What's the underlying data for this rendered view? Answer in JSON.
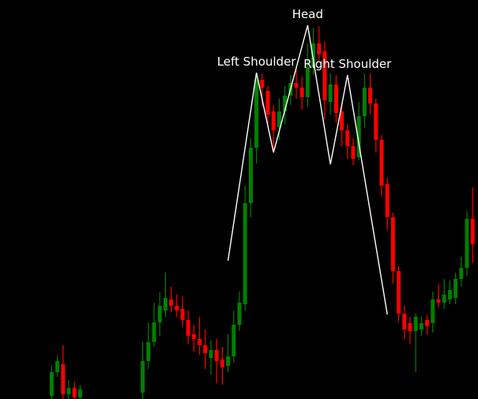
{
  "chart_data": {
    "type": "candlestick",
    "title": "",
    "xlabel": "",
    "ylabel": "",
    "ylim": [
      0,
      505
    ],
    "grid": false,
    "background": "#000000",
    "colors": {
      "up": "#008000",
      "down": "#ff0000",
      "pattern_line": "#ffffff",
      "label": "#ffffff"
    },
    "candles": [
      {
        "i": 1,
        "open": 4,
        "close": 34,
        "high": 42,
        "low": 0
      },
      {
        "i": 2,
        "open": 34,
        "close": 48,
        "high": 55,
        "low": 28
      },
      {
        "i": 3,
        "open": 44,
        "close": 6,
        "high": 68,
        "low": 0
      },
      {
        "i": 4,
        "open": 6,
        "close": 14,
        "high": 24,
        "low": 0
      },
      {
        "i": 5,
        "open": 14,
        "close": 2,
        "high": 22,
        "low": 0
      },
      {
        "i": 6,
        "open": 2,
        "close": 12,
        "high": 18,
        "low": 0
      },
      {
        "i": 17,
        "open": 8,
        "close": 48,
        "high": 72,
        "low": 0
      },
      {
        "i": 18,
        "open": 48,
        "close": 72,
        "high": 97,
        "low": 38
      },
      {
        "i": 19,
        "open": 72,
        "close": 97,
        "high": 122,
        "low": 66
      },
      {
        "i": 20,
        "open": 97,
        "close": 118,
        "high": 135,
        "low": 80
      },
      {
        "i": 21,
        "open": 112,
        "close": 128,
        "high": 160,
        "low": 104
      },
      {
        "i": 22,
        "open": 126,
        "close": 118,
        "high": 142,
        "low": 110
      },
      {
        "i": 23,
        "open": 118,
        "close": 112,
        "high": 132,
        "low": 104
      },
      {
        "i": 24,
        "open": 114,
        "close": 100,
        "high": 130,
        "low": 92
      },
      {
        "i": 25,
        "open": 100,
        "close": 80,
        "high": 112,
        "low": 70
      },
      {
        "i": 26,
        "open": 82,
        "close": 76,
        "high": 94,
        "low": 60
      },
      {
        "i": 27,
        "open": 76,
        "close": 68,
        "high": 104,
        "low": 56
      },
      {
        "i": 28,
        "open": 68,
        "close": 58,
        "high": 88,
        "low": 38
      },
      {
        "i": 29,
        "open": 52,
        "close": 62,
        "high": 74,
        "low": 30
      },
      {
        "i": 30,
        "open": 62,
        "close": 48,
        "high": 76,
        "low": 20
      },
      {
        "i": 31,
        "open": 50,
        "close": 40,
        "high": 66,
        "low": 18
      },
      {
        "i": 32,
        "open": 42,
        "close": 54,
        "high": 82,
        "low": 34
      },
      {
        "i": 33,
        "open": 54,
        "close": 94,
        "high": 112,
        "low": 46
      },
      {
        "i": 34,
        "open": 94,
        "close": 122,
        "high": 136,
        "low": 86
      },
      {
        "i": 35,
        "open": 120,
        "close": 248,
        "high": 270,
        "low": 112
      },
      {
        "i": 36,
        "open": 248,
        "close": 318,
        "high": 330,
        "low": 230
      },
      {
        "i": 37,
        "open": 318,
        "close": 404,
        "high": 412,
        "low": 298
      },
      {
        "i": 38,
        "open": 404,
        "close": 394,
        "high": 412,
        "low": 370
      },
      {
        "i": 39,
        "open": 390,
        "close": 360,
        "high": 396,
        "low": 348
      },
      {
        "i": 40,
        "open": 364,
        "close": 340,
        "high": 372,
        "low": 312
      },
      {
        "i": 41,
        "open": 344,
        "close": 364,
        "high": 380,
        "low": 328
      },
      {
        "i": 42,
        "open": 364,
        "close": 384,
        "high": 396,
        "low": 348
      },
      {
        "i": 43,
        "open": 384,
        "close": 400,
        "high": 410,
        "low": 372
      },
      {
        "i": 44,
        "open": 400,
        "close": 394,
        "high": 418,
        "low": 380
      },
      {
        "i": 45,
        "open": 394,
        "close": 382,
        "high": 408,
        "low": 366
      },
      {
        "i": 46,
        "open": 382,
        "close": 420,
        "high": 450,
        "low": 370
      },
      {
        "i": 47,
        "open": 420,
        "close": 450,
        "high": 470,
        "low": 410
      },
      {
        "i": 48,
        "open": 450,
        "close": 436,
        "high": 472,
        "low": 426
      },
      {
        "i": 49,
        "open": 440,
        "close": 378,
        "high": 452,
        "low": 354
      },
      {
        "i": 50,
        "open": 376,
        "close": 398,
        "high": 412,
        "low": 360
      },
      {
        "i": 51,
        "open": 398,
        "close": 362,
        "high": 410,
        "low": 350
      },
      {
        "i": 52,
        "open": 364,
        "close": 340,
        "high": 372,
        "low": 320
      },
      {
        "i": 53,
        "open": 340,
        "close": 320,
        "high": 348,
        "low": 304
      },
      {
        "i": 54,
        "open": 320,
        "close": 304,
        "high": 330,
        "low": 296
      },
      {
        "i": 55,
        "open": 306,
        "close": 358,
        "high": 376,
        "low": 302
      },
      {
        "i": 56,
        "open": 358,
        "close": 394,
        "high": 412,
        "low": 344
      },
      {
        "i": 57,
        "open": 394,
        "close": 374,
        "high": 412,
        "low": 360
      },
      {
        "i": 58,
        "open": 374,
        "close": 328,
        "high": 380,
        "low": 312
      },
      {
        "i": 59,
        "open": 328,
        "close": 270,
        "high": 334,
        "low": 256
      },
      {
        "i": 60,
        "open": 272,
        "close": 230,
        "high": 280,
        "low": 214
      },
      {
        "i": 61,
        "open": 230,
        "close": 162,
        "high": 236,
        "low": 146
      },
      {
        "i": 62,
        "open": 162,
        "close": 108,
        "high": 168,
        "low": 98
      },
      {
        "i": 63,
        "open": 108,
        "close": 88,
        "high": 118,
        "low": 76
      },
      {
        "i": 64,
        "open": 96,
        "close": 86,
        "high": 104,
        "low": 70
      },
      {
        "i": 65,
        "open": 86,
        "close": 104,
        "high": 108,
        "low": 34
      },
      {
        "i": 66,
        "open": 88,
        "close": 96,
        "high": 104,
        "low": 80
      },
      {
        "i": 67,
        "open": 100,
        "close": 92,
        "high": 106,
        "low": 82
      },
      {
        "i": 68,
        "open": 96,
        "close": 126,
        "high": 136,
        "low": 84
      },
      {
        "i": 69,
        "open": 126,
        "close": 122,
        "high": 146,
        "low": 116
      },
      {
        "i": 70,
        "open": 122,
        "close": 132,
        "high": 152,
        "low": 114
      },
      {
        "i": 71,
        "open": 126,
        "close": 138,
        "high": 150,
        "low": 120
      },
      {
        "i": 72,
        "open": 128,
        "close": 152,
        "high": 160,
        "low": 120
      },
      {
        "i": 73,
        "open": 152,
        "close": 166,
        "high": 180,
        "low": 142
      },
      {
        "i": 74,
        "open": 166,
        "close": 228,
        "high": 238,
        "low": 156
      },
      {
        "i": 75,
        "open": 228,
        "close": 196,
        "high": 268,
        "low": 172
      }
    ],
    "pattern": {
      "name": "Head and Shoulders",
      "points": [
        {
          "i": 32,
          "value": 175
        },
        {
          "i": 37,
          "value": 413
        },
        {
          "i": 40,
          "value": 312
        },
        {
          "i": 46,
          "value": 473
        },
        {
          "i": 50,
          "value": 297
        },
        {
          "i": 53,
          "value": 410
        },
        {
          "i": 60,
          "value": 107
        }
      ]
    },
    "annotations": [
      {
        "id": "left-shoulder",
        "text": "Left Shoulder",
        "i": 37,
        "value": 413
      },
      {
        "id": "head",
        "text": "Head",
        "i": 46,
        "value": 473
      },
      {
        "id": "right-shoulder",
        "text": "Right Shoulder",
        "i": 53,
        "value": 410
      }
    ]
  }
}
